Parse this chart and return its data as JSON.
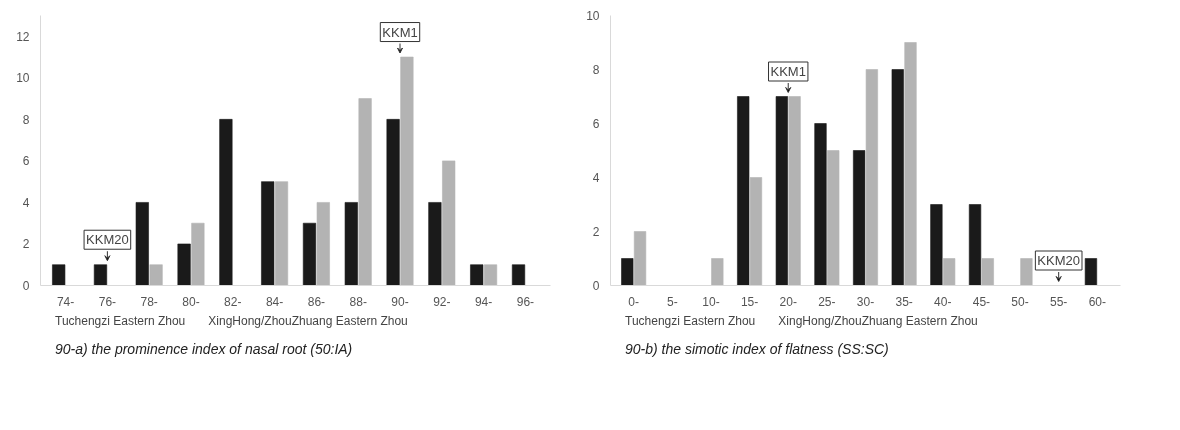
{
  "chart_data": [
    {
      "type": "bar",
      "categories": [
        "74-",
        "76-",
        "78-",
        "80-",
        "82-",
        "84-",
        "86-",
        "88-",
        "90-",
        "92-",
        "94-",
        "96-"
      ],
      "series": [
        {
          "name": "Tuchengzi Eastern Zhou",
          "color": "#1a1a1a",
          "values": [
            1,
            1,
            4,
            2,
            8,
            5,
            3,
            4,
            8,
            4,
            1,
            1
          ]
        },
        {
          "name": "XingHong/ZhouZhuang Eastern Zhou",
          "color": "#b3b3b3",
          "values": [
            0,
            0,
            1,
            3,
            0,
            5,
            4,
            9,
            11,
            6,
            1,
            0
          ]
        }
      ],
      "ylim": [
        0,
        13
      ],
      "yticks": [
        0,
        2,
        4,
        6,
        8,
        10,
        12
      ],
      "grid": false,
      "legend": "bottom",
      "annotations": [
        {
          "text": "KKM20",
          "x": "76-",
          "y": 1
        },
        {
          "text": "KKM1",
          "x": "90-",
          "y": 11
        },
        "90-a) the prominence index of nasal root (50:IA)"
      ]
    },
    {
      "type": "bar",
      "categories": [
        "0-",
        "5-",
        "10-",
        "15-",
        "20-",
        "25-",
        "30-",
        "35-",
        "40-",
        "45-",
        "50-",
        "55-",
        "60-"
      ],
      "series": [
        {
          "name": "Tuchengzi Eastern Zhou",
          "color": "#1a1a1a",
          "values": [
            1,
            0,
            0,
            7,
            7,
            6,
            5,
            8,
            3,
            3,
            0,
            0,
            1
          ]
        },
        {
          "name": "XingHong/ZhouZhuang Eastern Zhou",
          "color": "#b3b3b3",
          "values": [
            2,
            0,
            1,
            4,
            7,
            5,
            8,
            9,
            1,
            1,
            1,
            0,
            0
          ]
        }
      ],
      "ylim": [
        0,
        10
      ],
      "yticks": [
        0,
        2,
        4,
        6,
        8,
        10
      ],
      "grid": false,
      "legend": "bottom",
      "annotations": [
        {
          "text": "KKM1",
          "x": "20-",
          "y": 7
        },
        {
          "text": "KKM20",
          "x": "55-",
          "y": 0
        },
        "90-b) the simotic index of flatness (SS:SC)"
      ]
    }
  ]
}
